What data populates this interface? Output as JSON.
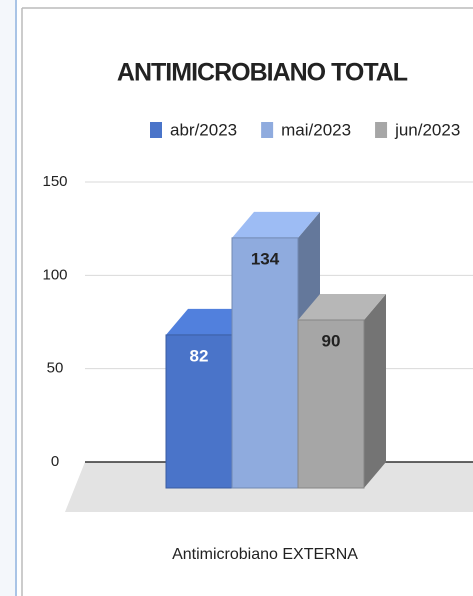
{
  "chart_data": {
    "type": "bar3d",
    "title": "ANTIMICROBIANO TOTAL",
    "categories": [
      "Antimicrobiano EXTERNA"
    ],
    "series": [
      {
        "name": "abr/2023",
        "color": "#4a74c9",
        "values": [
          82
        ]
      },
      {
        "name": "mai/2023",
        "color": "#8fabde",
        "values": [
          134
        ]
      },
      {
        "name": "jun/2023",
        "color": "#a6a6a6",
        "values": [
          90
        ]
      }
    ],
    "ylim": [
      0,
      150
    ],
    "yticks": [
      0,
      50,
      100,
      150
    ],
    "grid": true,
    "legend": "top"
  }
}
